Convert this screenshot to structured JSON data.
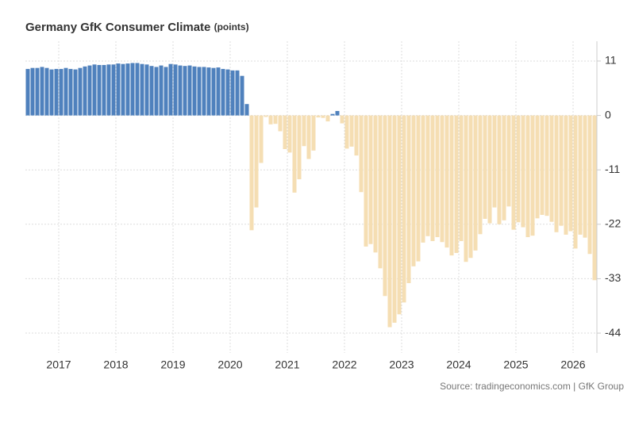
{
  "chart_data": {
    "type": "bar",
    "title": "Germany GfK Consumer Climate",
    "units": "(points)",
    "source": "Source: tradingeconomics.com | GfK Group",
    "categories": [
      null,
      null,
      null,
      null,
      null,
      null,
      null,
      "2017",
      null,
      null,
      null,
      null,
      null,
      null,
      null,
      null,
      null,
      null,
      null,
      "2018",
      null,
      null,
      null,
      null,
      null,
      null,
      null,
      null,
      null,
      null,
      null,
      "2019",
      null,
      null,
      null,
      null,
      null,
      null,
      null,
      null,
      null,
      null,
      null,
      "2020",
      null,
      null,
      null,
      null,
      null,
      null,
      null,
      null,
      null,
      null,
      null,
      "2021",
      null,
      null,
      null,
      null,
      null,
      null,
      null,
      null,
      null,
      null,
      null,
      "2022",
      null,
      null,
      null,
      null,
      null,
      null,
      null,
      null,
      null,
      null,
      null,
      "2023",
      null,
      null,
      null,
      null,
      null,
      null,
      null,
      null,
      null,
      null,
      null,
      "2024",
      null,
      null,
      null,
      null,
      null,
      null,
      null,
      null,
      null,
      null,
      null,
      "2025",
      null,
      null,
      null,
      null,
      null,
      null,
      null,
      null,
      null,
      null,
      null,
      "2026",
      null,
      null,
      null,
      null
    ],
    "values": [
      9.4,
      9.6,
      9.6,
      9.8,
      9.6,
      9.3,
      9.4,
      9.4,
      9.6,
      9.4,
      9.3,
      9.6,
      9.9,
      10.1,
      10.3,
      10.2,
      10.2,
      10.3,
      10.3,
      10.5,
      10.4,
      10.5,
      10.6,
      10.6,
      10.4,
      10.3,
      10.0,
      9.8,
      10.1,
      9.8,
      10.4,
      10.3,
      10.1,
      10.0,
      10.1,
      9.9,
      9.8,
      9.8,
      9.7,
      9.6,
      9.7,
      9.4,
      9.3,
      9.1,
      9.1,
      8.0,
      2.3,
      -23.2,
      -18.6,
      -9.6,
      -0.3,
      -1.8,
      -1.7,
      -3.2,
      -6.8,
      -7.5,
      -15.6,
      -12.9,
      -6.2,
      -8.8,
      -7.1,
      -0.4,
      -0.5,
      -1.2,
      0.3,
      0.9,
      -1.6,
      -6.7,
      -6.3,
      -8.1,
      -15.5,
      -26.5,
      -26.0,
      -27.7,
      -30.9,
      -36.5,
      -42.8,
      -41.9,
      -40.2,
      -37.8,
      -33.9,
      -30.5,
      -29.5,
      -25.7,
      -24.4,
      -25.4,
      -24.6,
      -25.6,
      -26.7,
      -28.3,
      -27.8,
      -25.4,
      -29.6,
      -28.8,
      -27.3,
      -24.0,
      -20.9,
      -21.8,
      -18.6,
      -22.0,
      -21.2,
      -18.4,
      -23.1,
      -21.6,
      -22.6,
      -24.6,
      -24.3,
      -20.8,
      -20.1,
      -20.3,
      -21.5,
      -23.6,
      -22.3,
      -24.1,
      -23.4,
      -26.9,
      -24.1,
      -24.7,
      -28.0,
      -33.3
    ],
    "positive_color": "#4f81bd",
    "negative_color": "#f5deb3",
    "ylim": [
      -48,
      15
    ],
    "yticks": [
      11,
      0,
      -11,
      -22,
      -33,
      -44
    ],
    "grid": true
  }
}
